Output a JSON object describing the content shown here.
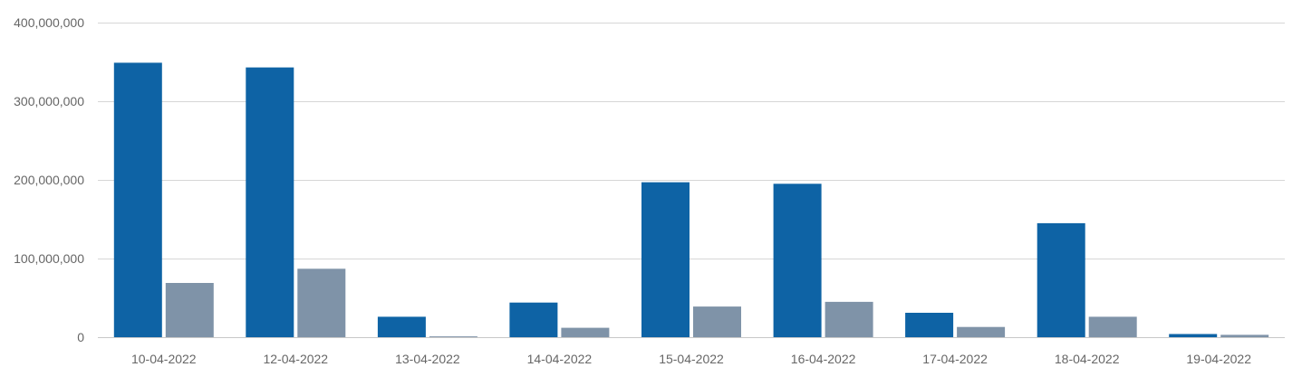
{
  "chart_data": {
    "type": "bar",
    "categories": [
      "10-04-2022",
      "12-04-2022",
      "13-04-2022",
      "14-04-2022",
      "15-04-2022",
      "16-04-2022",
      "17-04-2022",
      "18-04-2022",
      "19-04-2022"
    ],
    "series": [
      {
        "color": "#0e63a5",
        "values": [
          349000000,
          343000000,
          26000000,
          44000000,
          197000000,
          195000000,
          31000000,
          145000000,
          4000000
        ]
      },
      {
        "color": "#7f93a8",
        "values": [
          69000000,
          87000000,
          1000000,
          12000000,
          39000000,
          45000000,
          13000000,
          26000000,
          3000000
        ]
      }
    ],
    "ylim": [
      0,
      400000000
    ],
    "yticks": [
      0,
      100000000,
      200000000,
      300000000,
      400000000
    ],
    "ytick_labels": [
      "0",
      "100,000,000",
      "200,000,000",
      "300,000,000",
      "400,000,000"
    ],
    "grid": true
  }
}
